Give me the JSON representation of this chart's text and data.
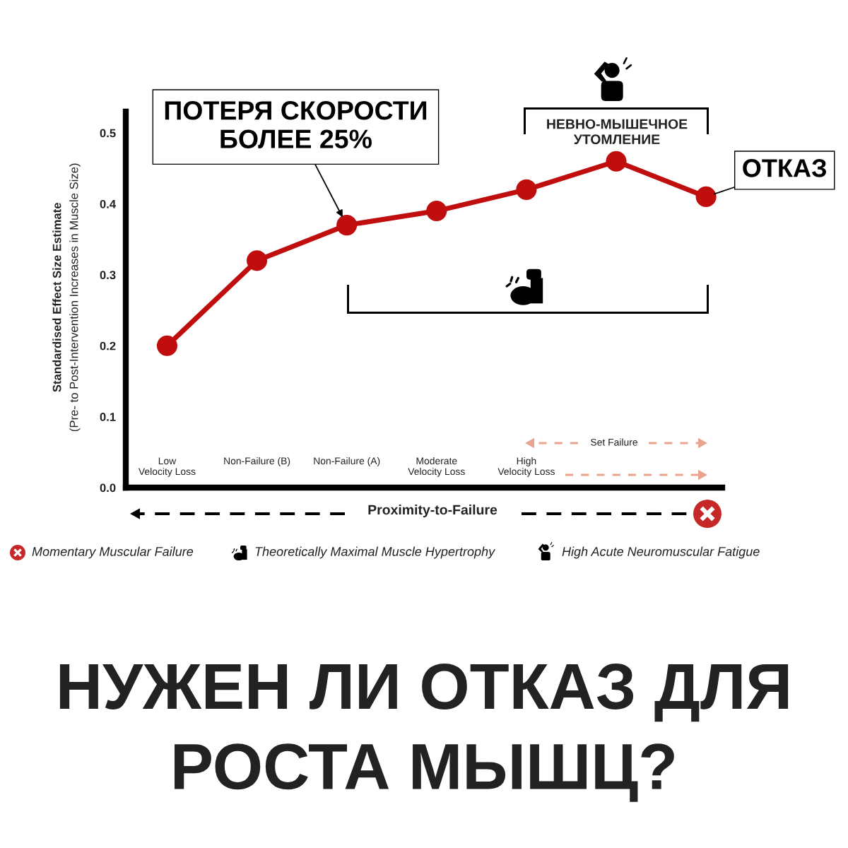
{
  "chart_data": {
    "type": "line",
    "title": "НУЖЕН ЛИ ОТКАЗ ДЛЯ\nРОСТА МЫШЦ?",
    "xlabel": "Proximity-to-Failure",
    "ylabel": "Standardised Effect Size Estimate\n(Pre- to Post-Intervention Increases in Muscle Size)",
    "categories": [
      "Low\nVelocity Loss",
      "Non-Failure (B)",
      "Non-Failure (A)",
      "Moderate\nVelocity Loss",
      "High\nVelocity Loss",
      null,
      null
    ],
    "series": [
      {
        "color": "#c00d0d",
        "values": [
          0.2,
          0.32,
          0.37,
          0.39,
          0.42,
          0.46,
          0.41
        ]
      }
    ],
    "ylim": [
      0,
      0.53
    ],
    "yticks": [
      {
        "value": 0,
        "label": "0.0"
      },
      0.1,
      0.2,
      0.3,
      0.4,
      0.5
    ],
    "marker": "circle",
    "line_style": "solid",
    "grid": false,
    "annotations": [
      {
        "text": "ПОТЕРЯ СКОРОСТИ\nБОЛЕЕ 25%",
        "x": "Non-Failure (A)",
        "y": 0.37
      },
      "ОТКАЗ",
      "НЕВНО-МЫШЕЧНОЕ\nУТОМЛЕНИЕ",
      "Set Failure",
      "Momentary Muscular Failure",
      "Theoretically Maximal Muscle Hypertrophy",
      "High Acute Neuromuscular Fatigue"
    ]
  }
}
